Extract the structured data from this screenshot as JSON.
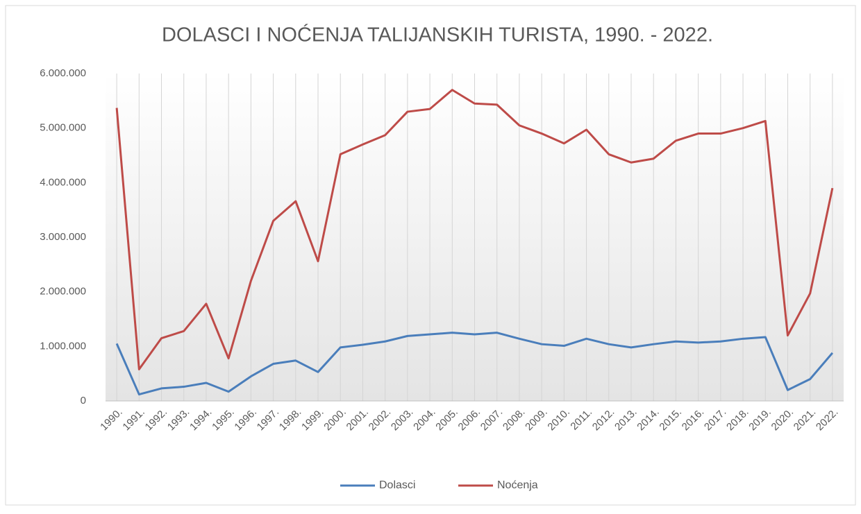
{
  "chart_data": {
    "type": "line",
    "title": "DOLASCI I NOĆENJA TALIJANSKIH TURISTA, 1990. - 2022.",
    "categories": [
      "1990.",
      "1991.",
      "1992.",
      "1993.",
      "1994.",
      "1995.",
      "1996.",
      "1997.",
      "1998.",
      "1999.",
      "2000.",
      "2001.",
      "2002.",
      "2003.",
      "2004.",
      "2005.",
      "2006.",
      "2007.",
      "2008.",
      "2009.",
      "2010.",
      "2011.",
      "2012.",
      "2013.",
      "2014.",
      "2015.",
      "2016.",
      "2017.",
      "2018.",
      "2019.",
      "2020.",
      "2021.",
      "2022."
    ],
    "series": [
      {
        "name": "Dolasci",
        "color": "#4a7ebb",
        "values": [
          1050000,
          120000,
          230000,
          260000,
          330000,
          170000,
          450000,
          680000,
          740000,
          530000,
          980000,
          1030000,
          1090000,
          1190000,
          1220000,
          1250000,
          1220000,
          1250000,
          1140000,
          1040000,
          1010000,
          1140000,
          1040000,
          980000,
          1040000,
          1090000,
          1070000,
          1090000,
          1140000,
          1170000,
          200000,
          400000,
          880000
        ]
      },
      {
        "name": "Noćenja",
        "color": "#be4b48",
        "values": [
          5370000,
          580000,
          1150000,
          1280000,
          1780000,
          780000,
          2200000,
          3300000,
          3660000,
          2560000,
          4520000,
          4700000,
          4870000,
          5300000,
          5350000,
          5700000,
          5450000,
          5430000,
          5050000,
          4900000,
          4720000,
          4970000,
          4520000,
          4370000,
          4440000,
          4770000,
          4900000,
          4900000,
          5000000,
          5130000,
          1200000,
          1970000,
          3900000
        ]
      }
    ],
    "ylim": [
      0,
      6000000
    ],
    "yticks": [
      0,
      {
        "value": 1000000,
        "label": "1.000.000"
      },
      {
        "value": 2000000,
        "label": "2.000.000"
      },
      {
        "value": 3000000,
        "label": "3.000.000"
      },
      {
        "value": 4000000,
        "label": "4.000.000"
      },
      {
        "value": 5000000,
        "label": "5.000.000"
      },
      {
        "value": 6000000,
        "label": "6.000.000"
      }
    ],
    "legend": "bottom"
  }
}
